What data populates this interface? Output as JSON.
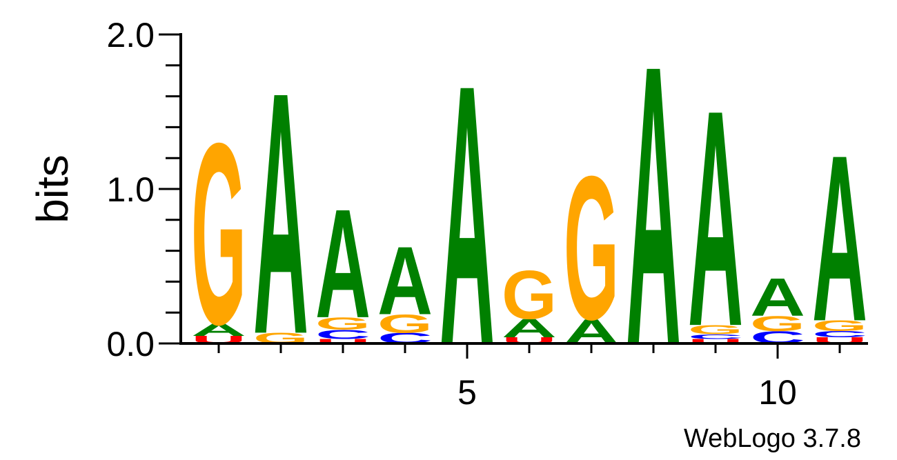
{
  "chart_data": {
    "type": "sequence-logo",
    "ylabel": "bits",
    "ylim": [
      0,
      2
    ],
    "yticks": [
      {
        "value": 0,
        "label": "0.0"
      },
      {
        "value": 1,
        "label": "1.0"
      },
      {
        "value": 2,
        "label": "2.0"
      }
    ],
    "xticks": [
      {
        "value": 5,
        "label": "5"
      },
      {
        "value": 10,
        "label": "10"
      }
    ],
    "positions": [
      1,
      2,
      3,
      4,
      5,
      6,
      7,
      8,
      9,
      10,
      11
    ],
    "colors": {
      "A": "#008000",
      "C": "#0000ff",
      "G": "#ffa500",
      "U": "#ff0000"
    },
    "stacks": [
      [
        {
          "letter": "U",
          "bits": 0.05
        },
        {
          "letter": "A",
          "bits": 0.08
        },
        {
          "letter": "G",
          "bits": 1.2
        }
      ],
      [
        {
          "letter": "G",
          "bits": 0.07
        },
        {
          "letter": "A",
          "bits": 1.6
        }
      ],
      [
        {
          "letter": "U",
          "bits": 0.03
        },
        {
          "letter": "C",
          "bits": 0.06
        },
        {
          "letter": "G",
          "bits": 0.08
        },
        {
          "letter": "A",
          "bits": 0.72
        }
      ],
      [
        {
          "letter": "C",
          "bits": 0.07
        },
        {
          "letter": "G",
          "bits": 0.12
        },
        {
          "letter": "A",
          "bits": 0.45
        }
      ],
      [
        {
          "letter": "A",
          "bits": 1.72
        }
      ],
      [
        {
          "letter": "U",
          "bits": 0.04
        },
        {
          "letter": "A",
          "bits": 0.12
        },
        {
          "letter": "G",
          "bits": 0.32
        }
      ],
      [
        {
          "letter": "A",
          "bits": 0.16
        },
        {
          "letter": "G",
          "bits": 0.95
        }
      ],
      [
        {
          "letter": "A",
          "bits": 1.85
        }
      ],
      [
        {
          "letter": "U",
          "bits": 0.03
        },
        {
          "letter": "C",
          "bits": 0.03
        },
        {
          "letter": "G",
          "bits": 0.06
        },
        {
          "letter": "A",
          "bits": 1.43
        }
      ],
      [
        {
          "letter": "C",
          "bits": 0.08
        },
        {
          "letter": "G",
          "bits": 0.1
        },
        {
          "letter": "A",
          "bits": 0.25
        }
      ],
      [
        {
          "letter": "U",
          "bits": 0.04
        },
        {
          "letter": "C",
          "bits": 0.04
        },
        {
          "letter": "G",
          "bits": 0.07
        },
        {
          "letter": "A",
          "bits": 1.1
        }
      ]
    ]
  },
  "credit": "WebLogo 3.7.8"
}
